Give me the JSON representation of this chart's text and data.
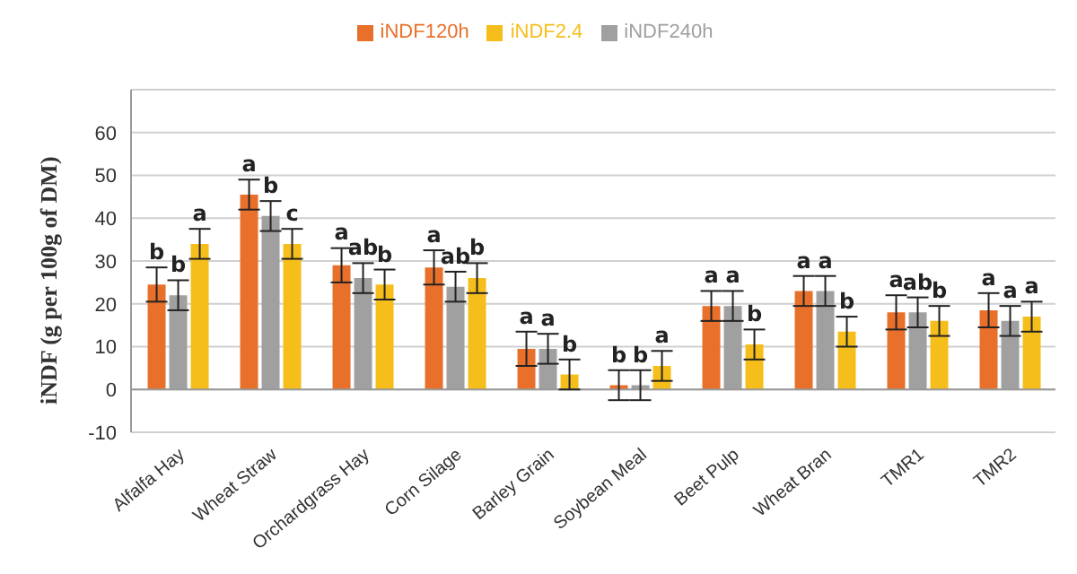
{
  "chart_data": {
    "type": "bar",
    "ylabel": "iNDF (g per 100g of DM)",
    "categories": [
      "Alfalfa Hay",
      "Wheat Straw",
      "Orchardgrass Hay",
      "Corn Silage",
      "Barley Grain",
      "Soybean Meal",
      "Beet Pulp",
      "Wheat Bran",
      "TMR1",
      "TMR2"
    ],
    "series": [
      {
        "name": "iNDF120h",
        "color": "#e8702a",
        "values": [
          24.5,
          45.5,
          29,
          28.5,
          9.5,
          1,
          19.5,
          23,
          18,
          18.5
        ],
        "errors": [
          4,
          3.5,
          4,
          4,
          4,
          3.5,
          3.5,
          3.5,
          4,
          4
        ],
        "value_labels": [
          "b",
          "a",
          "a",
          "a",
          "a",
          "b",
          "a",
          "a",
          "a",
          "a"
        ]
      },
      {
        "name": "iNDF240h",
        "color": "#a0a0a0",
        "values": [
          22,
          40.5,
          26,
          24,
          9.5,
          1,
          19.5,
          23,
          18,
          16
        ],
        "errors": [
          3.5,
          3.5,
          3.5,
          3.5,
          3.5,
          3.5,
          3.5,
          3.5,
          3.5,
          3.5
        ],
        "value_labels": [
          "b",
          "b",
          "ab",
          "ab",
          "a",
          "b",
          "a",
          "a",
          "ab",
          "a"
        ]
      },
      {
        "name": "iNDF2.4",
        "color": "#f5be1a",
        "values": [
          34,
          34,
          24.5,
          26,
          3.5,
          5.5,
          10.5,
          13.5,
          16,
          17
        ],
        "errors": [
          3.5,
          3.5,
          3.5,
          3.5,
          3.5,
          3.5,
          3.5,
          3.5,
          3.5,
          3.5
        ],
        "value_labels": [
          "a",
          "c",
          "b",
          "b",
          "b",
          "a",
          "b",
          "b",
          "b",
          "a"
        ]
      }
    ],
    "ylim": [
      -10,
      70
    ],
    "yticks": [
      -10,
      0,
      10,
      20,
      30,
      40,
      50,
      60
    ],
    "grid": "y",
    "legend": "top"
  }
}
